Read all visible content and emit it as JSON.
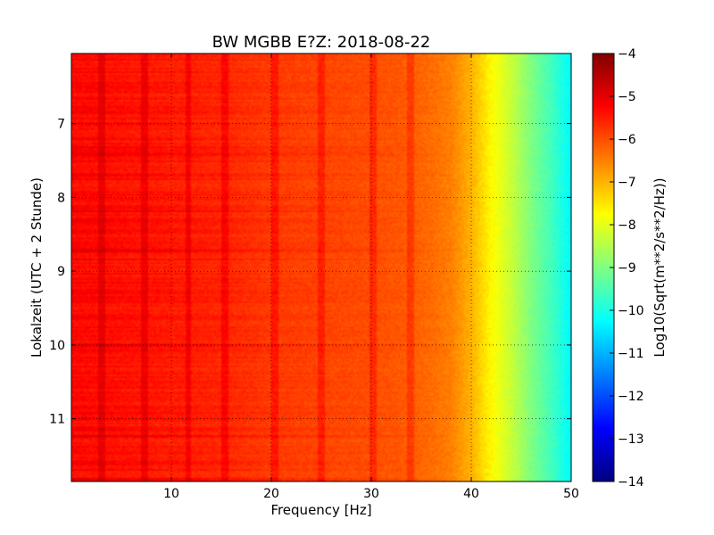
{
  "chart_data": {
    "type": "heatmap",
    "title": "BW MGBB E?Z: 2018-08-22",
    "xlabel": "Frequency [Hz]",
    "ylabel": "Lokalzeit (UTC + 2 Stunde)",
    "colorbar_label": "Log10(Sqrt(m**2/s**2/Hz))",
    "xlim": [
      0,
      50
    ],
    "ylim_top_to_bottom": [
      6.05,
      11.85
    ],
    "x_ticks": [
      10,
      20,
      30,
      40,
      50
    ],
    "y_ticks": [
      7,
      8,
      9,
      10,
      11
    ],
    "colorbar_range": [
      -14,
      -4
    ],
    "colorbar_ticks": [
      -4,
      -5,
      -6,
      -7,
      -8,
      -9,
      -10,
      -11,
      -12,
      -13,
      -14
    ],
    "colormap": "jet",
    "grid": true,
    "spectrum_profile": {
      "frequency_hz": [
        0,
        5,
        10,
        15,
        20,
        25,
        30,
        33,
        36,
        38,
        40,
        42,
        44,
        46,
        48,
        50
      ],
      "level": [
        -5.3,
        -5.4,
        -5.5,
        -5.6,
        -5.8,
        -5.9,
        -6.0,
        -6.1,
        -6.3,
        -6.5,
        -7.0,
        -7.7,
        -8.3,
        -9.0,
        -9.6,
        -10.3
      ]
    },
    "line_features_hz": [
      3.1,
      7.3,
      11.7,
      15.3,
      20.4,
      25.0,
      30.1,
      33.9
    ]
  },
  "tick_labels": {
    "x": [
      "10",
      "20",
      "30",
      "40",
      "50"
    ],
    "y": [
      "7",
      "8",
      "9",
      "10",
      "11"
    ],
    "colorbar": [
      "−4",
      "−5",
      "−6",
      "−7",
      "−8",
      "−9",
      "−10",
      "−11",
      "−12",
      "−13",
      "−14"
    ]
  }
}
